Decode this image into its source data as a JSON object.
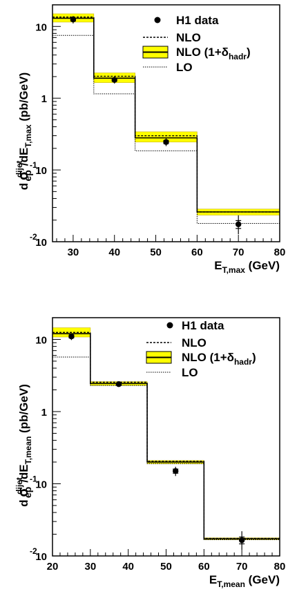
{
  "colors": {
    "band": "#ffff00",
    "band_edge": "#c8b400",
    "line": "#000000"
  },
  "legend": {
    "data_label": "H1 data",
    "nlo_label": "NLO",
    "nlo_hadr_prefix": "NLO (1+",
    "delta": "δ",
    "hadr_sub": "hadr",
    "nlo_hadr_suffix": ")",
    "lo_label": "LO"
  },
  "chart_data": [
    {
      "type": "line",
      "ylabel": {
        "d": "d",
        "sigma": "σ",
        "sup": "dijet",
        "sub": "ep",
        "mid": "/dE",
        "sub2": "T,max",
        "units": " (pb/GeV)"
      },
      "xlabel": {
        "main": "E",
        "sub": "T,max",
        "units": " (GeV)"
      },
      "xlim": [
        25,
        80
      ],
      "ylim": [
        0.01,
        20
      ],
      "log_y": true,
      "xticks": [
        30,
        40,
        50,
        60,
        70,
        80
      ],
      "xtick_labels": [
        "30",
        "40",
        "50",
        "60",
        "70",
        "80"
      ],
      "yticks": [
        {
          "value": 10,
          "label": "10",
          "exp": ""
        },
        {
          "value": 1,
          "label": "1",
          "exp": ""
        },
        {
          "value": 0.1,
          "label": "10",
          "exp": "-1"
        },
        {
          "value": 0.01,
          "label": "10",
          "exp": "-2"
        }
      ],
      "bins": [
        25,
        35,
        45,
        60,
        80
      ],
      "nlo": [
        13.5,
        2.02,
        0.3,
        0.026
      ],
      "nlo_hadr": [
        13.0,
        1.9,
        0.28,
        0.026
      ],
      "nlo_hadr_low": [
        11.5,
        1.65,
        0.245,
        0.0235
      ],
      "nlo_hadr_high": [
        15.0,
        2.25,
        0.34,
        0.0285
      ],
      "lo": [
        7.5,
        1.15,
        0.185,
        0.018
      ],
      "data": {
        "x": [
          30,
          40,
          52.5,
          70
        ],
        "y": [
          12.5,
          1.8,
          0.245,
          0.0175
        ],
        "err_low": [
          1.5,
          0.2,
          0.03,
          0.0048
        ],
        "err_high": [
          1.5,
          0.2,
          0.03,
          0.0058
        ],
        "stat_low": [
          0.6,
          0.08,
          0.012,
          0.0022
        ],
        "stat_high": [
          0.6,
          0.08,
          0.012,
          0.0022
        ]
      }
    },
    {
      "type": "line",
      "ylabel": {
        "d": "d",
        "sigma": "σ",
        "sup": "dijet",
        "sub": "ep",
        "mid": "/dE",
        "sub2": "T,mean",
        "units": " (pb/GeV)"
      },
      "xlabel": {
        "main": "E",
        "sub": "T,mean",
        "units": " (GeV)"
      },
      "xlim": [
        20,
        80
      ],
      "ylim": [
        0.01,
        20
      ],
      "log_y": true,
      "xticks": [
        20,
        30,
        40,
        50,
        60,
        70,
        80
      ],
      "xtick_labels": [
        "20",
        "30",
        "40",
        "50",
        "60",
        "70",
        "80"
      ],
      "yticks": [
        {
          "value": 10,
          "label": "10",
          "exp": ""
        },
        {
          "value": 1,
          "label": "1",
          "exp": ""
        },
        {
          "value": 0.1,
          "label": "10",
          "exp": "-1"
        },
        {
          "value": 0.01,
          "label": "10",
          "exp": "-2"
        }
      ],
      "bins": [
        20,
        30,
        45,
        60,
        80
      ],
      "nlo": [
        12.5,
        2.55,
        0.205,
        0.0175
      ],
      "nlo_hadr": [
        12.0,
        2.45,
        0.2,
        0.0173
      ],
      "nlo_hadr_low": [
        10.8,
        2.3,
        0.19,
        0.0168
      ],
      "nlo_hadr_high": [
        14.5,
        2.6,
        0.21,
        0.0178
      ],
      "lo": [
        5.7,
        2.3,
        0.19,
        0.0168
      ],
      "data": {
        "x": [
          25,
          37.5,
          52.5,
          70
        ],
        "y": [
          11.0,
          2.4,
          0.15,
          0.0165
        ],
        "err_low": [
          1.2,
          0.2,
          0.022,
          0.0042
        ],
        "err_high": [
          1.2,
          0.2,
          0.022,
          0.0055
        ],
        "stat_low": [
          0.5,
          0.08,
          0.01,
          0.0018
        ],
        "stat_high": [
          0.5,
          0.08,
          0.01,
          0.0018
        ]
      }
    }
  ]
}
